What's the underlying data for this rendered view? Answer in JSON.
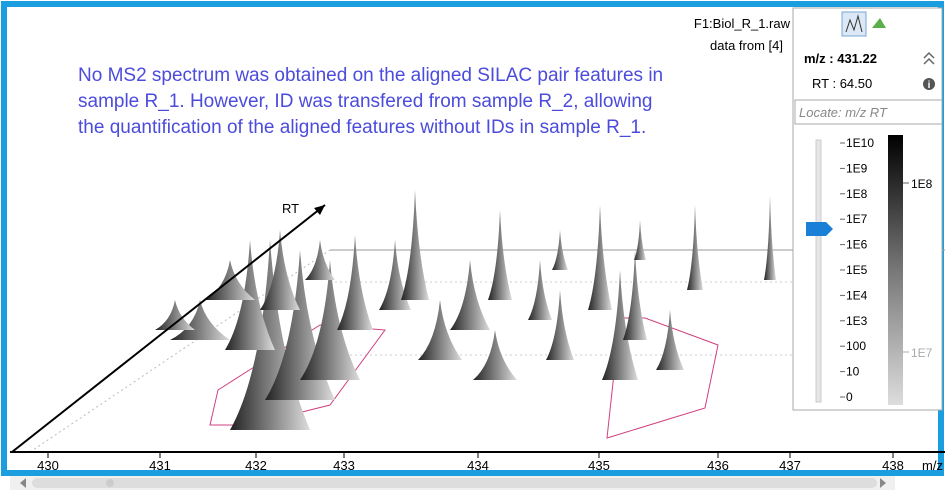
{
  "header": {
    "file": "F1:Biol_R_1.raw",
    "source": "data from [4]"
  },
  "annotation": [
    "No MS2 spectrum was obtained on the aligned SILAC pair features in",
    "sample R_1. However, ID was transfered from sample R_2, allowing",
    "the quantification of the aligned features without IDs in sample R_1."
  ],
  "plot": {
    "rt_label": "RT",
    "x_axis_label": "m/z",
    "x_ticks": [
      "430",
      "431",
      "432",
      "433",
      "434",
      "435",
      "436",
      "437",
      "438"
    ]
  },
  "panel": {
    "mz": "m/z : 431.22",
    "rt": "RT : 64.50",
    "locate_placeholder": "Locate: m/z RT",
    "intensity_scale": [
      "1E10",
      "1E9",
      "1E8",
      "1E7",
      "1E6",
      "1E5",
      "1E4",
      "1E3",
      "100",
      "10",
      "0"
    ],
    "colorbar_labels": [
      "1E8",
      "1E7"
    ]
  }
}
